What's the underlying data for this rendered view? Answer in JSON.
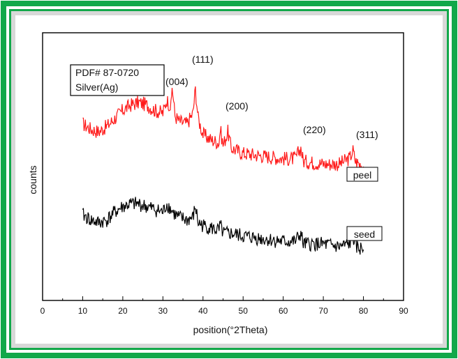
{
  "chart_data": {
    "type": "line",
    "xlabel": "position(°2Theta)",
    "ylabel": "counts",
    "xlim": [
      0,
      90
    ],
    "x_ticks": [
      "0",
      "10",
      "20",
      "30",
      "40",
      "50",
      "60",
      "70",
      "80",
      "90"
    ],
    "legend_box": {
      "line1": "PDF# 87-0720",
      "line2": "Silver(Ag)"
    },
    "reflections": [
      {
        "label": "(004)",
        "x": 32.3
      },
      {
        "label": "(111)",
        "x": 38.1
      },
      {
        "label": "(200)",
        "x": 44.3
      },
      {
        "label": "(220)",
        "x": 64.4
      },
      {
        "label": "(311)",
        "x": 77.4
      }
    ],
    "series": [
      {
        "name": "peel",
        "color": "#ff1a1a",
        "x": [
          10,
          12,
          14,
          16,
          18,
          20,
          22,
          24,
          26,
          28,
          30,
          31,
          32,
          32.3,
          33,
          34,
          36,
          37.5,
          38.1,
          38.8,
          40,
          42,
          44,
          44.3,
          45,
          46.2,
          47,
          50,
          55,
          60,
          63,
          64.4,
          65,
          70,
          74,
          76.5,
          77.4,
          78,
          80
        ],
        "y": [
          0.66,
          0.64,
          0.63,
          0.65,
          0.68,
          0.71,
          0.73,
          0.74,
          0.73,
          0.71,
          0.7,
          0.75,
          0.72,
          0.8,
          0.69,
          0.67,
          0.66,
          0.7,
          0.79,
          0.68,
          0.62,
          0.6,
          0.59,
          0.64,
          0.58,
          0.63,
          0.57,
          0.55,
          0.54,
          0.53,
          0.53,
          0.57,
          0.52,
          0.51,
          0.51,
          0.53,
          0.56,
          0.52,
          0.5
        ]
      },
      {
        "name": "seed",
        "color": "#000000",
        "x": [
          10,
          12,
          14,
          16,
          18,
          20,
          22,
          24,
          26,
          28,
          30,
          31,
          32,
          33,
          34,
          36,
          37.5,
          38.1,
          38.8,
          40,
          42,
          44,
          44.3,
          45,
          47,
          50,
          55,
          60,
          63,
          64.4,
          65,
          70,
          74,
          76.5,
          77.4,
          78,
          80
        ],
        "y": [
          0.32,
          0.3,
          0.29,
          0.3,
          0.33,
          0.35,
          0.36,
          0.36,
          0.35,
          0.34,
          0.33,
          0.36,
          0.34,
          0.32,
          0.31,
          0.3,
          0.31,
          0.35,
          0.29,
          0.28,
          0.27,
          0.26,
          0.28,
          0.25,
          0.25,
          0.24,
          0.23,
          0.22,
          0.22,
          0.25,
          0.21,
          0.21,
          0.2,
          0.21,
          0.24,
          0.2,
          0.19
        ]
      }
    ],
    "grid": false,
    "legend": "inline labels right of curves"
  }
}
